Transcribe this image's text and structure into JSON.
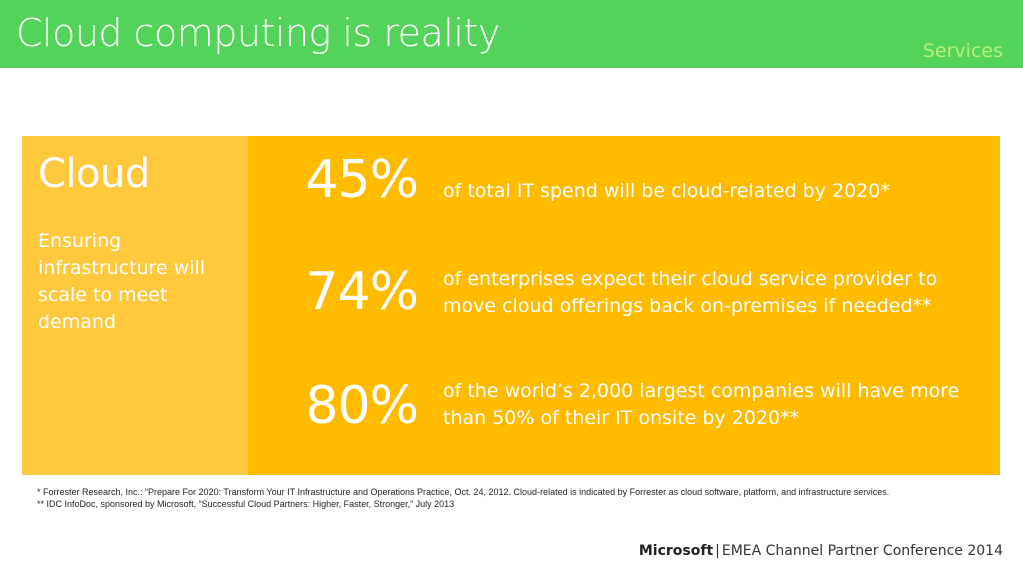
{
  "header": {
    "title": "Cloud computing is reality",
    "section": "Services"
  },
  "side_card": {
    "title": "Cloud",
    "description": "Ensuring infrastructure will scale to meet demand"
  },
  "stats": [
    {
      "value": "45%",
      "text": "of total IT spend will be cloud-related by 2020*"
    },
    {
      "value": "74%",
      "text": "of enterprises expect their cloud service provider to move cloud offerings back on-premises if needed**"
    },
    {
      "value": "80%",
      "text": "of the world’s 2,000 largest companies will have more than 50% of their IT onsite by 2020**"
    }
  ],
  "footnotes": [
    "* Forrester Research, Inc.: “Prepare For 2020: Transform Your IT Infrastructure and Operations Practice, Oct. 24, 2012. Cloud-related is indicated by Forrester as cloud software, platform, and infrastructure services.",
    "** IDC InfoDoc, sponsored by Microsoft, “Successful Cloud Partners: Higher, Faster, Stronger,” July 2013"
  ],
  "footer": {
    "brand": "Microsoft",
    "separator": "|",
    "event": "EMEA Channel Partner Conference 2014"
  },
  "colors": {
    "header_green": "#54d35a",
    "panel_orange": "#ffbb00",
    "card_yellow": "#ffc83d",
    "section_label": "#b9f27b"
  }
}
